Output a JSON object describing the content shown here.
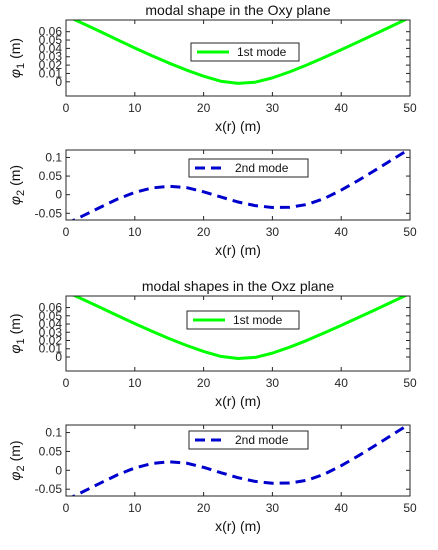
{
  "chart_data": [
    {
      "type": "line",
      "title": "modal shape in the Oxy plane",
      "xlabel": "x(r) (m)",
      "ylabel": "φ",
      "ylabel_sub": "1",
      "ylabel_unit": " (m)",
      "xlim": [
        0,
        50
      ],
      "ylim": [
        -0.017,
        0.074
      ],
      "xticks": [
        0,
        10,
        20,
        30,
        40,
        50
      ],
      "yticks": [
        0,
        0.01,
        0.02,
        0.03,
        0.04,
        0.05,
        0.06
      ],
      "ytick_labels": [
        "0",
        "0.01",
        "0.02",
        "0.03",
        "0.04",
        "0.05",
        "0.06"
      ],
      "grid": false,
      "legend_position": "top-center",
      "series": [
        {
          "name": "1st mode",
          "color": "#00ff00",
          "style": "solid",
          "x": [
            0,
            2.5,
            5,
            7.5,
            10,
            12.5,
            15,
            17.5,
            20,
            22.5,
            25,
            27.5,
            30,
            32.5,
            35,
            37.5,
            40,
            42.5,
            45,
            47.5,
            50
          ],
          "y": [
            0.0791,
            0.0697,
            0.0601,
            0.0502,
            0.0405,
            0.0312,
            0.0223,
            0.0141,
            0.0067,
            0.0007,
            -0.0019,
            -0.0005,
            0.0047,
            0.0119,
            0.0201,
            0.0291,
            0.0384,
            0.0479,
            0.0575,
            0.0673,
            0.0771
          ]
        }
      ]
    },
    {
      "type": "line",
      "title": "",
      "xlabel": "x(r) (m)",
      "ylabel": "φ",
      "ylabel_sub": "2",
      "ylabel_unit": " (m)",
      "xlim": [
        0,
        50
      ],
      "ylim": [
        -0.068,
        0.12
      ],
      "xticks": [
        0,
        10,
        20,
        30,
        40,
        50
      ],
      "yticks": [
        -0.05,
        0,
        0.05,
        0.1
      ],
      "ytick_labels": [
        "-0.05",
        "0",
        "0.05",
        "0.1"
      ],
      "grid": false,
      "legend_position": "top-center",
      "series": [
        {
          "name": "2nd mode",
          "color": "#0000cc",
          "style": "dashed",
          "x": [
            0,
            2.5,
            5,
            7.5,
            10,
            12.5,
            15,
            17.5,
            20,
            22.5,
            25,
            27.5,
            30,
            32.5,
            35,
            37.5,
            40,
            42.5,
            45,
            47.5,
            50
          ],
          "y": [
            -0.0784,
            -0.0564,
            -0.0337,
            -0.0117,
            0.0062,
            0.0181,
            0.0227,
            0.0191,
            0.0078,
            -0.0062,
            -0.0196,
            -0.0294,
            -0.0343,
            -0.0337,
            -0.0264,
            -0.0106,
            0.0123,
            0.0384,
            0.0664,
            0.0951,
            0.1236
          ]
        }
      ]
    },
    {
      "type": "line",
      "title": "modal shapes in the Oxz plane",
      "xlabel": "x(r) (m)",
      "ylabel": "φ",
      "ylabel_sub": "1",
      "ylabel_unit": " (m)",
      "xlim": [
        0,
        50
      ],
      "ylim": [
        -0.017,
        0.074
      ],
      "xticks": [
        0,
        10,
        20,
        30,
        40,
        50
      ],
      "yticks": [
        0,
        0.01,
        0.02,
        0.03,
        0.04,
        0.05,
        0.06
      ],
      "ytick_labels": [
        "0",
        "0.01",
        "0.02",
        "0.03",
        "0.04",
        "0.05",
        "0.06"
      ],
      "grid": false,
      "legend_position": "top-center",
      "series": [
        {
          "name": "1st mode",
          "color": "#00ff00",
          "style": "solid",
          "x": [
            0,
            2.5,
            5,
            7.5,
            10,
            12.5,
            15,
            17.5,
            20,
            22.5,
            25,
            27.5,
            30,
            32.5,
            35,
            37.5,
            40,
            42.5,
            45,
            47.5,
            50
          ],
          "y": [
            0.0791,
            0.0697,
            0.0601,
            0.0502,
            0.0405,
            0.0312,
            0.0223,
            0.0141,
            0.0067,
            0.0007,
            -0.0019,
            -0.0005,
            0.0047,
            0.0119,
            0.0201,
            0.0291,
            0.0384,
            0.0479,
            0.0575,
            0.0673,
            0.0771
          ]
        }
      ]
    },
    {
      "type": "line",
      "title": "",
      "xlabel": "x(r) (m)",
      "ylabel": "φ",
      "ylabel_sub": "2",
      "ylabel_unit": " (m)",
      "xlim": [
        0,
        50
      ],
      "ylim": [
        -0.068,
        0.12
      ],
      "xticks": [
        0,
        10,
        20,
        30,
        40,
        50
      ],
      "yticks": [
        -0.05,
        0,
        0.05,
        0.1
      ],
      "ytick_labels": [
        "-0.05",
        "0",
        "0.05",
        "0.1"
      ],
      "grid": false,
      "legend_position": "top-center",
      "series": [
        {
          "name": "2nd mode",
          "color": "#0000cc",
          "style": "dashed",
          "x": [
            0,
            2.5,
            5,
            7.5,
            10,
            12.5,
            15,
            17.5,
            20,
            22.5,
            25,
            27.5,
            30,
            32.5,
            35,
            37.5,
            40,
            42.5,
            45,
            47.5,
            50
          ],
          "y": [
            -0.0784,
            -0.0564,
            -0.0337,
            -0.0117,
            0.0062,
            0.0181,
            0.0227,
            0.0191,
            0.0078,
            -0.0062,
            -0.0196,
            -0.0294,
            -0.0343,
            -0.0337,
            -0.0264,
            -0.0106,
            0.0123,
            0.0384,
            0.0664,
            0.0951,
            0.1236
          ]
        }
      ]
    }
  ]
}
